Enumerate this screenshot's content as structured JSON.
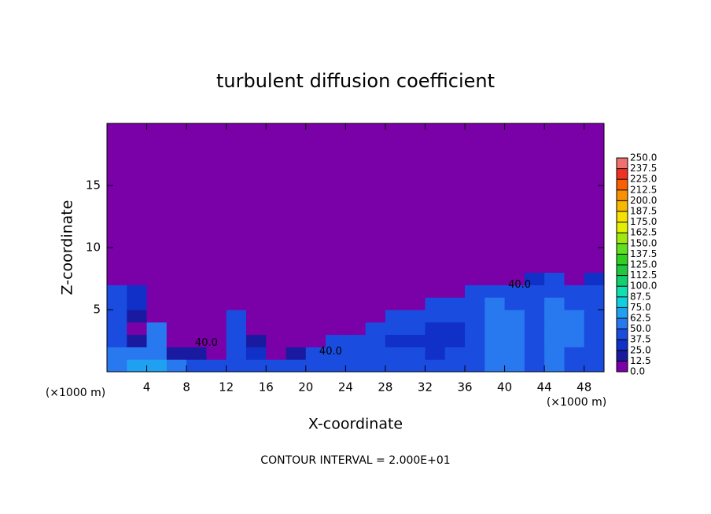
{
  "chart_data": {
    "type": "heatmap",
    "title": "turbulent diffusion coefficient",
    "x_label": "X-coordinate",
    "y_label": "Z-coordinate",
    "x_unit": "(×1000 m)",
    "footer": "CONTOUR INTERVAL = 2.000E+01",
    "xlim": [
      0,
      50
    ],
    "ylim": [
      0,
      20
    ],
    "xticks": [
      4,
      8,
      12,
      16,
      20,
      24,
      28,
      32,
      36,
      40,
      44,
      48
    ],
    "yticks": [
      5,
      10,
      15
    ],
    "xbins": [
      0,
      2,
      4,
      6,
      8,
      10,
      12,
      14,
      16,
      18,
      20,
      22,
      24,
      26,
      28,
      30,
      32,
      34,
      36,
      38,
      40,
      42,
      44,
      46,
      48,
      50
    ],
    "ybins": [
      0,
      1,
      2,
      3,
      4,
      5,
      6,
      7,
      8,
      20
    ],
    "z": [
      [
        55,
        70,
        70,
        60,
        45,
        40,
        45,
        45,
        45,
        45,
        40,
        45,
        45,
        45,
        45,
        45,
        45,
        45,
        45,
        50,
        50,
        45,
        50,
        45,
        40
      ],
      [
        50,
        60,
        50,
        20,
        15,
        10,
        45,
        30,
        10,
        20,
        40,
        45,
        45,
        45,
        45,
        45,
        30,
        40,
        40,
        50,
        55,
        40,
        55,
        45,
        45
      ],
      [
        45,
        20,
        55,
        10,
        10,
        10,
        45,
        15,
        5,
        5,
        5,
        40,
        45,
        40,
        30,
        30,
        30,
        30,
        45,
        60,
        50,
        40,
        60,
        50,
        45
      ],
      [
        45,
        10,
        50,
        5,
        5,
        5,
        40,
        5,
        5,
        5,
        5,
        5,
        5,
        40,
        45,
        40,
        35,
        30,
        40,
        60,
        50,
        45,
        55,
        50,
        45
      ],
      [
        40,
        15,
        5,
        5,
        5,
        5,
        45,
        5,
        5,
        5,
        5,
        5,
        5,
        5,
        40,
        40,
        40,
        45,
        40,
        55,
        55,
        40,
        55,
        50,
        40
      ],
      [
        40,
        30,
        5,
        5,
        5,
        5,
        10,
        5,
        5,
        5,
        5,
        5,
        5,
        5,
        5,
        5,
        40,
        40,
        45,
        50,
        45,
        40,
        50,
        45,
        40
      ],
      [
        40,
        30,
        5,
        5,
        5,
        5,
        5,
        5,
        5,
        5,
        5,
        5,
        5,
        5,
        5,
        5,
        5,
        10,
        40,
        40,
        40,
        40,
        45,
        40,
        40
      ],
      [
        10,
        5,
        0,
        0,
        0,
        0,
        0,
        0,
        0,
        0,
        0,
        0,
        0,
        0,
        0,
        0,
        0,
        0,
        0,
        10,
        10,
        30,
        40,
        5,
        30
      ],
      [
        0,
        0,
        0,
        0,
        0,
        0,
        0,
        0,
        0,
        0,
        0,
        0,
        0,
        0,
        0,
        0,
        0,
        0,
        0,
        0,
        0,
        0,
        0,
        0,
        0
      ]
    ],
    "levels": [
      {
        "value": 0,
        "label": "0.0"
      },
      {
        "value": 12.5,
        "label": "12.5"
      },
      {
        "value": 25,
        "label": "25.0"
      },
      {
        "value": 37.5,
        "label": "37.5"
      },
      {
        "value": 50,
        "label": "50.0"
      },
      {
        "value": 62.5,
        "label": "62.5"
      },
      {
        "value": 75,
        "label": "75.0"
      },
      {
        "value": 87.5,
        "label": "87.5"
      },
      {
        "value": 100,
        "label": "100.0"
      },
      {
        "value": 112.5,
        "label": "112.5"
      },
      {
        "value": 125,
        "label": "125.0"
      },
      {
        "value": 137.5,
        "label": "137.5"
      },
      {
        "value": 150,
        "label": "150.0"
      },
      {
        "value": 162.5,
        "label": "162.5"
      },
      {
        "value": 175,
        "label": "175.0"
      },
      {
        "value": 187.5,
        "label": "187.5"
      },
      {
        "value": 200,
        "label": "200.0"
      },
      {
        "value": 212.5,
        "label": "212.5"
      },
      {
        "value": 225,
        "label": "225.0"
      },
      {
        "value": 237.5,
        "label": "237.5"
      },
      {
        "value": 250,
        "label": "250.0"
      }
    ],
    "level_colors": [
      "#7a00a8",
      "#1a1aa0",
      "#1030c8",
      "#1a4ce0",
      "#2878f0",
      "#20a0f0",
      "#10d0e0",
      "#10e0b0",
      "#10d070",
      "#20c840",
      "#30d020",
      "#60e020",
      "#a0e810",
      "#e0f000",
      "#f8e000",
      "#f8b800",
      "#f89000",
      "#f86000",
      "#f03020",
      "#f07070"
    ],
    "annotations": [
      {
        "text": "40.0",
        "x": 41.5,
        "y": 7
      },
      {
        "text": "40.0",
        "x": 22.5,
        "y": 1.6
      },
      {
        "text": "40.0",
        "x": 10,
        "y": 2.3
      }
    ]
  }
}
